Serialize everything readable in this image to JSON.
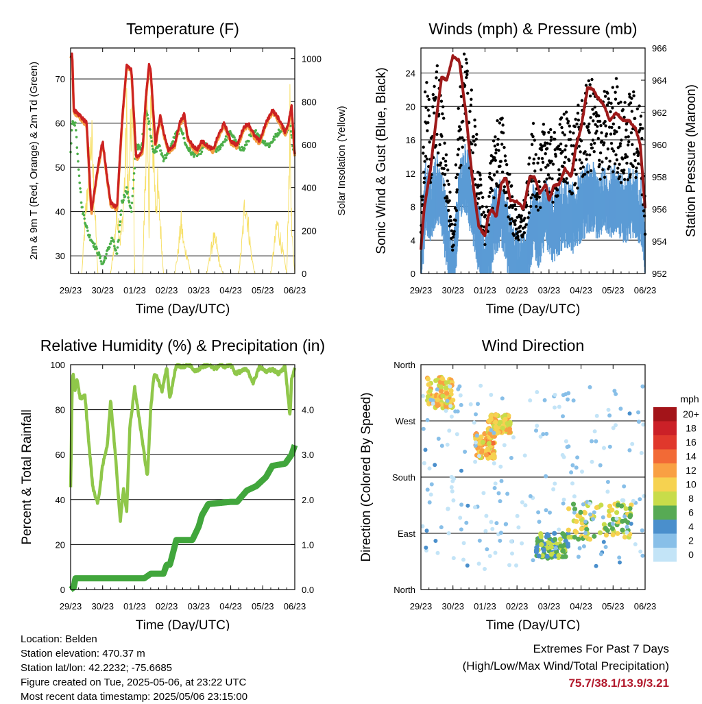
{
  "x_tick_labels": [
    "29/23",
    "30/23",
    "01/23",
    "02/23",
    "03/23",
    "04/23",
    "05/23",
    "06/23"
  ],
  "x_axis_label": "Time (Day/UTC)",
  "chart_data": [
    {
      "type": "line",
      "title": "Temperature (F)",
      "xlabel": "Time (Day/UTC)",
      "ylabel": "2m & 9m T (Red, Orange) & 2m Td (Green)",
      "ylabel_right": "Solar Insolation (Yellow)",
      "ylim": [
        26,
        77
      ],
      "yticks": [
        30,
        40,
        50,
        60,
        70
      ],
      "ylim_right": [
        0,
        1050
      ],
      "yticks_right": [
        0,
        200,
        400,
        600,
        800,
        1000
      ],
      "grid": true,
      "series": [
        {
          "color": "#cc2222",
          "axis": "left",
          "x": [
            0,
            0.05,
            0.1,
            0.25,
            0.5,
            0.65,
            0.85,
            1.0,
            1.1,
            1.25,
            1.45,
            1.6,
            1.75,
            1.9,
            2.05,
            2.25,
            2.35,
            2.45,
            2.5,
            2.65,
            2.8,
            2.9,
            3.05,
            3.25,
            3.4,
            3.55,
            3.65,
            3.8,
            3.95,
            4.1,
            4.25,
            4.45,
            4.6,
            4.8,
            5.0,
            5.2,
            5.4,
            5.55,
            5.75,
            5.9,
            6.1,
            6.3,
            6.5,
            6.7,
            6.8,
            6.9,
            7.0
          ],
          "y": [
            75,
            76,
            63,
            62,
            60,
            40,
            50,
            56,
            50,
            42,
            41,
            60,
            73,
            72,
            52,
            54,
            66,
            73,
            72,
            55,
            62,
            58,
            54,
            55,
            60,
            62,
            57,
            55,
            54,
            56,
            55,
            54,
            57,
            60,
            56,
            55,
            59,
            60,
            57,
            56,
            60,
            63,
            61,
            58,
            60,
            64,
            53
          ]
        },
        {
          "color": "#f39c40",
          "axis": "left",
          "x": [
            0,
            0.05,
            0.1,
            0.25,
            0.5,
            0.65,
            0.85,
            1.0,
            1.1,
            1.25,
            1.45,
            1.6,
            1.75,
            1.9,
            2.05,
            2.25,
            2.35,
            2.45,
            2.5,
            2.65,
            2.8,
            2.9,
            3.05,
            3.25,
            3.4,
            3.55,
            3.65,
            3.8,
            3.95,
            4.1,
            4.25,
            4.45,
            4.6,
            4.8,
            5.0,
            5.2,
            5.4,
            5.55,
            5.75,
            5.9,
            6.1,
            6.3,
            6.5,
            6.7,
            6.8,
            6.9,
            7.0
          ],
          "y": [
            74.5,
            75.5,
            62.5,
            61.5,
            59.5,
            39.5,
            49.5,
            55.5,
            49.5,
            41.5,
            40.5,
            59.5,
            72.5,
            71.5,
            51.5,
            53.5,
            65.5,
            72.5,
            71.5,
            54.5,
            61.5,
            57.5,
            53.5,
            54.5,
            59.5,
            61.5,
            56.5,
            54.5,
            53.5,
            55.5,
            54.5,
            53.5,
            56.5,
            59.5,
            55.5,
            54.5,
            58.5,
            59.5,
            56.5,
            55.5,
            59.5,
            62.5,
            60.5,
            57.5,
            59.5,
            63.5,
            52.5
          ]
        },
        {
          "color": "#4daf4a",
          "axis": "left",
          "x": [
            0,
            0.05,
            0.15,
            0.25,
            0.35,
            0.45,
            0.55,
            0.7,
            0.9,
            1.0,
            1.15,
            1.3,
            1.45,
            1.6,
            1.75,
            1.9,
            2.05,
            2.2,
            2.35,
            2.45,
            2.6,
            2.75,
            2.9,
            3.05,
            3.25,
            3.45,
            3.6,
            3.8,
            4.0,
            4.2,
            4.4,
            4.6,
            4.8,
            5.0,
            5.2,
            5.4,
            5.6,
            5.8,
            6.0,
            6.2,
            6.4,
            6.6,
            6.75,
            6.85,
            6.95,
            7.0
          ],
          "y": [
            54,
            60,
            60,
            50,
            41,
            38,
            35,
            33,
            30,
            28,
            31,
            34,
            30,
            42,
            45,
            40,
            55,
            54,
            63,
            60,
            53,
            55,
            52,
            53,
            57,
            59,
            55,
            53,
            53,
            55,
            54,
            54,
            56,
            58,
            55,
            54,
            57,
            58,
            56,
            55,
            57,
            59,
            58,
            61,
            54,
            53
          ]
        },
        {
          "color": "#f7e06a",
          "axis": "right",
          "x": [
            0,
            0.35,
            0.45,
            0.55,
            0.65,
            0.75,
            0.85,
            1.25,
            1.35,
            1.45,
            1.55,
            1.62,
            1.7,
            1.75,
            1.8,
            1.9,
            1.95,
            2.0,
            2.25,
            2.32,
            2.38,
            2.45,
            2.5,
            2.55,
            2.6,
            2.65,
            2.72,
            2.8,
            2.9,
            3.25,
            3.35,
            3.45,
            3.55,
            3.65,
            3.75,
            4.25,
            4.35,
            4.45,
            4.55,
            4.65,
            4.75,
            5.25,
            5.35,
            5.45,
            5.55,
            5.65,
            5.75,
            6.25,
            6.35,
            6.45,
            6.55,
            6.65,
            6.75,
            6.8,
            6.85,
            6.9,
            7.0
          ],
          "y": [
            0,
            0,
            300,
            550,
            800,
            400,
            0,
            0,
            150,
            380,
            200,
            300,
            600,
            900,
            400,
            950,
            800,
            0,
            0,
            500,
            980,
            300,
            1000,
            850,
            700,
            400,
            500,
            300,
            0,
            0,
            120,
            300,
            150,
            100,
            0,
            0,
            100,
            200,
            180,
            60,
            0,
            0,
            180,
            450,
            280,
            100,
            0,
            0,
            150,
            300,
            200,
            100,
            0,
            400,
            900,
            250,
            0
          ]
        }
      ]
    },
    {
      "type": "scatter",
      "title": "Winds (mph) & Pressure (mb)",
      "xlabel": "Time (Day/UTC)",
      "ylabel": "Sonic Wind & Gust (Blue, Black)",
      "ylabel_right": "Station Pressure (Maroon)",
      "ylim": [
        0,
        27
      ],
      "yticks": [
        0,
        4,
        8,
        12,
        16,
        20,
        24
      ],
      "ylim_right": [
        952,
        966
      ],
      "yticks_right": [
        952,
        954,
        956,
        958,
        960,
        962,
        964,
        966
      ],
      "grid": true,
      "series": [
        {
          "type": "line",
          "color": "#9e1a1a",
          "axis": "right",
          "x": [
            0,
            0.1,
            0.3,
            0.5,
            0.65,
            0.8,
            1.0,
            1.2,
            1.4,
            1.6,
            1.8,
            2.0,
            2.1,
            2.2,
            2.35,
            2.5,
            2.65,
            2.8,
            3.0,
            3.2,
            3.4,
            3.55,
            3.7,
            3.9,
            4.0,
            4.15,
            4.3,
            4.5,
            4.7,
            4.85,
            5.0,
            5.2,
            5.35,
            5.5,
            5.7,
            5.9,
            6.1,
            6.3,
            6.5,
            6.7,
            6.85,
            7.0
          ],
          "y": [
            953.5,
            956,
            958.5,
            962,
            964.2,
            964,
            965.5,
            965.2,
            962,
            958,
            955,
            954.3,
            955.5,
            956,
            955.5,
            957.5,
            958,
            956.5,
            956.5,
            956,
            958,
            958,
            957,
            957.5,
            956.5,
            957.5,
            957.5,
            958.5,
            958,
            960,
            961,
            963.5,
            963.5,
            963,
            962.5,
            961.5,
            962,
            961.5,
            961.5,
            961,
            960,
            956
          ]
        },
        {
          "type": "band",
          "color": "#5b9bd5",
          "axis": "left",
          "x": [
            0,
            0.15,
            0.3,
            0.5,
            0.7,
            0.9,
            1.0,
            1.2,
            1.4,
            1.6,
            1.8,
            2.0,
            2.15,
            2.3,
            2.5,
            2.7,
            2.9,
            3.1,
            3.3,
            3.5,
            3.7,
            3.9,
            4.1,
            4.3,
            4.5,
            4.7,
            4.9,
            5.1,
            5.3,
            5.5,
            5.7,
            5.9,
            6.1,
            6.3,
            6.5,
            6.7,
            6.9,
            7.0
          ],
          "y": [
            3,
            11,
            9,
            12,
            9,
            4,
            1,
            11,
            13,
            10,
            6,
            2,
            5,
            8,
            9,
            6,
            3,
            2,
            4,
            8,
            6,
            9,
            7,
            8,
            9,
            8,
            9,
            10,
            11,
            10,
            10,
            10,
            11,
            9,
            10,
            10,
            9,
            3
          ]
        }
      ]
    },
    {
      "type": "line",
      "title": "Relative Humidity (%) & Precipitation (in)",
      "xlabel": "Time (Day/UTC)",
      "ylabel": "Percent & Total Rainfall",
      "ylim": [
        0,
        100
      ],
      "yticks": [
        0,
        20,
        40,
        60,
        80,
        100
      ],
      "ylim_right": [
        0,
        5
      ],
      "yticks_right": [
        "0.0",
        "1.0",
        "2.0",
        "3.0",
        "4.0"
      ],
      "grid": true,
      "series": [
        {
          "color": "#8fc74a",
          "axis": "left",
          "x": [
            0,
            0.05,
            0.08,
            0.12,
            0.2,
            0.3,
            0.45,
            0.6,
            0.7,
            0.85,
            1.0,
            1.15,
            1.25,
            1.4,
            1.55,
            1.65,
            1.75,
            1.85,
            2.0,
            2.1,
            2.25,
            2.4,
            2.5,
            2.6,
            2.7,
            2.85,
            3.0,
            3.1,
            3.3,
            3.5,
            3.7,
            3.9,
            4.1,
            4.3,
            4.5,
            4.6,
            4.7,
            4.85,
            5.0,
            5.15,
            5.3,
            5.5,
            5.7,
            5.9,
            6.1,
            6.3,
            6.5,
            6.7,
            6.85,
            6.9,
            7.0
          ],
          "y": [
            45,
            92,
            97,
            88,
            93,
            85,
            86,
            60,
            45,
            38,
            55,
            65,
            84,
            60,
            30,
            45,
            35,
            72,
            90,
            80,
            65,
            50,
            80,
            95,
            95,
            88,
            99,
            85,
            100,
            99,
            100,
            97,
            99,
            100,
            98,
            99,
            100,
            99,
            100,
            96,
            97,
            98,
            92,
            99,
            97,
            98,
            96,
            99,
            77,
            93,
            99
          ]
        },
        {
          "type": "step",
          "color": "#41a63c",
          "axis": "right",
          "x": [
            0,
            0.1,
            0.15,
            2.3,
            2.5,
            2.9,
            3.0,
            3.1,
            3.3,
            3.8,
            4.0,
            4.1,
            4.3,
            5.0,
            5.2,
            5.5,
            5.8,
            6.1,
            6.3,
            6.7,
            6.9,
            7.0
          ],
          "y": [
            0,
            0.05,
            0.25,
            0.25,
            0.35,
            0.35,
            0.55,
            0.55,
            1.1,
            1.1,
            1.4,
            1.65,
            1.9,
            1.95,
            1.95,
            2.2,
            2.3,
            2.5,
            2.75,
            2.8,
            3.0,
            3.21
          ]
        }
      ]
    },
    {
      "type": "scatter",
      "title": "Wind Direction",
      "xlabel": "Time (Day/UTC)",
      "ylabel": "Direction (Colored By Speed)",
      "yticks": [
        "North",
        "East",
        "South",
        "West",
        "North"
      ],
      "yticks_degrees": [
        0,
        90,
        180,
        270,
        360
      ],
      "ylim": [
        0,
        360
      ],
      "grid": true,
      "legend": {
        "title": "mph",
        "position": "right",
        "labels": [
          "20+",
          "18",
          "16",
          "14",
          "12",
          "10",
          "8",
          "6",
          "4",
          "2",
          "0"
        ],
        "colors": [
          "#a31419",
          "#cb2027",
          "#e0382c",
          "#f26a36",
          "#f9a043",
          "#f6d250",
          "#c8dc4a",
          "#57aa54",
          "#4a8fcc",
          "#88bfe8",
          "#c3e4f7"
        ]
      },
      "clusters": [
        {
          "x_range": [
            0.2,
            1.0
          ],
          "deg_range": [
            290,
            340
          ],
          "speed": 10
        },
        {
          "x_range": [
            1.7,
            2.3
          ],
          "deg_range": [
            210,
            250
          ],
          "speed": 11
        },
        {
          "x_range": [
            2.1,
            2.8
          ],
          "deg_range": [
            250,
            280
          ],
          "speed": 10
        },
        {
          "x_range": [
            3.6,
            4.6
          ],
          "deg_range": [
            50,
            90
          ],
          "speed": 6
        },
        {
          "x_range": [
            4.6,
            6.6
          ],
          "deg_range": [
            80,
            140
          ],
          "speed": 8
        },
        {
          "x_range": [
            0.0,
            7.0
          ],
          "deg_range": [
            0,
            360
          ],
          "speed": 3
        }
      ]
    }
  ],
  "footer": {
    "location": "Location: Belden",
    "elevation": "Station elevation: 470.37 m",
    "latlon": "Station lat/lon: 42.2232; -75.6685",
    "created": "Figure created on Tue, 2025-05-06, at 23:22 UTC",
    "latest": "Most recent data timestamp: 2025/05/06 23:15:00",
    "extremes_title": "Extremes For Past 7 Days",
    "extremes_sub": "(High/Low/Max Wind/Total Precipitation)",
    "extremes_values": "75.7/38.1/13.9/3.21"
  }
}
